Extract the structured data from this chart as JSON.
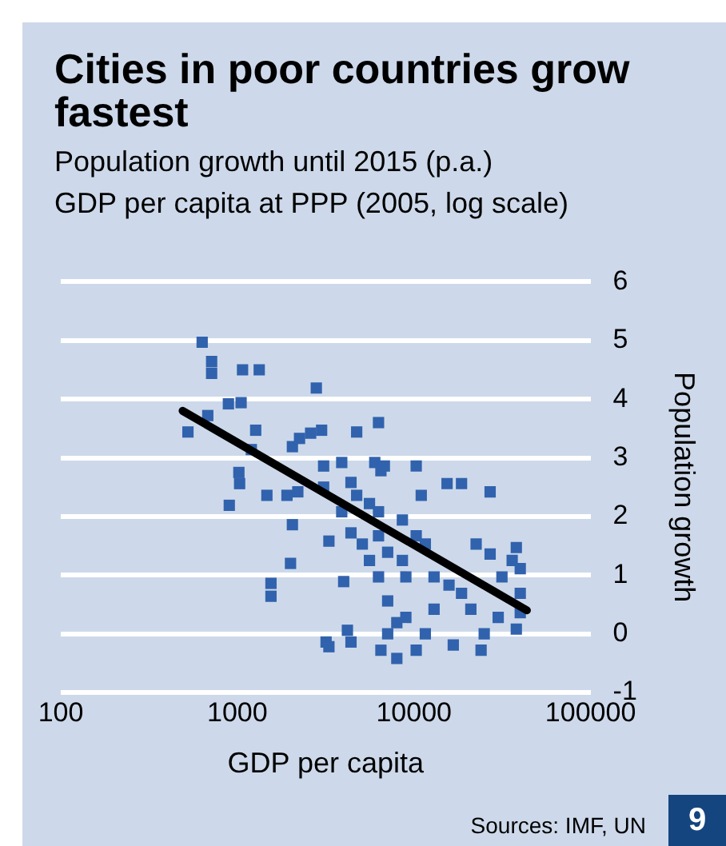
{
  "chart_data": {
    "type": "scatter",
    "title": "Cities in poor countries grow fastest",
    "subtitle": "Population growth until 2015 (p.a.)\nGDP per capita at PPP (2005, log scale)",
    "xlabel": "GDP per capita",
    "ylabel": "Population growth",
    "log": "x",
    "xlim": [
      100,
      100000
    ],
    "xticks": [
      100,
      1000,
      10000,
      100000
    ],
    "ylim": [
      -1,
      6
    ],
    "yticks": [
      -1,
      0,
      1,
      2,
      3,
      4,
      5,
      6
    ],
    "grid": "y",
    "legend": false,
    "marker": "square",
    "series": [
      {
        "color": "#3162ad",
        "x": [
          632,
          715,
          715,
          1070,
          1330,
          2800,
          525,
          680,
          890,
          1050,
          1270,
          1200,
          1020,
          1030,
          900,
          1470,
          1910,
          2200,
          2050,
          2000,
          1550,
          1550,
          2050,
          2250,
          2600,
          3000,
          3080,
          3080,
          3900,
          4400,
          4740,
          3900,
          4400,
          4740,
          6300,
          4000,
          3180,
          3300,
          4200,
          4400,
          6000,
          6500,
          5600,
          6300,
          6300,
          7100,
          6300,
          7100,
          8000,
          7100,
          6500,
          6800,
          10300,
          11000,
          15400,
          18600,
          27000,
          8600,
          10300,
          11600,
          9000,
          13000,
          15800,
          22500,
          27000,
          38000,
          40000,
          40000,
          40000,
          38000,
          30000,
          25000,
          24000,
          16700,
          11600,
          10300,
          8000,
          9000,
          13000,
          18600,
          21000,
          31500,
          36000,
          8600,
          5600,
          5100,
          3300
        ],
        "values": [
          4.97,
          4.64,
          4.44,
          4.5,
          4.5,
          4.19,
          3.44,
          3.72,
          3.92,
          3.94,
          3.47,
          3.14,
          2.75,
          2.56,
          2.19,
          2.36,
          2.36,
          2.42,
          1.86,
          1.2,
          0.64,
          0.86,
          3.19,
          3.33,
          3.42,
          3.47,
          2.86,
          2.5,
          2.92,
          2.58,
          2.36,
          2.08,
          1.72,
          3.44,
          3.6,
          0.89,
          -0.14,
          -0.22,
          0.06,
          -0.14,
          2.92,
          2.78,
          2.22,
          2.08,
          1.67,
          1.39,
          0.97,
          0.56,
          0.19,
          0,
          -0.28,
          2.86,
          2.86,
          2.36,
          2.56,
          2.56,
          2.42,
          1.94,
          1.67,
          1.53,
          0.97,
          0.97,
          0.83,
          1.53,
          1.36,
          1.47,
          1.11,
          0.69,
          0.36,
          0.08,
          0.28,
          0,
          -0.28,
          -0.19,
          0,
          -0.28,
          -0.42,
          0.28,
          0.42,
          0.69,
          0.42,
          0.97,
          1.25,
          1.25,
          1.25,
          1.53,
          1.58
        ]
      },
      {
        "type": "line",
        "color": "#000000",
        "x": [
          490,
          43600
        ],
        "values": [
          3.8,
          0.4
        ],
        "marker": "none"
      }
    ],
    "annotations": [
      "Sources: IMF, UN",
      "9"
    ]
  }
}
